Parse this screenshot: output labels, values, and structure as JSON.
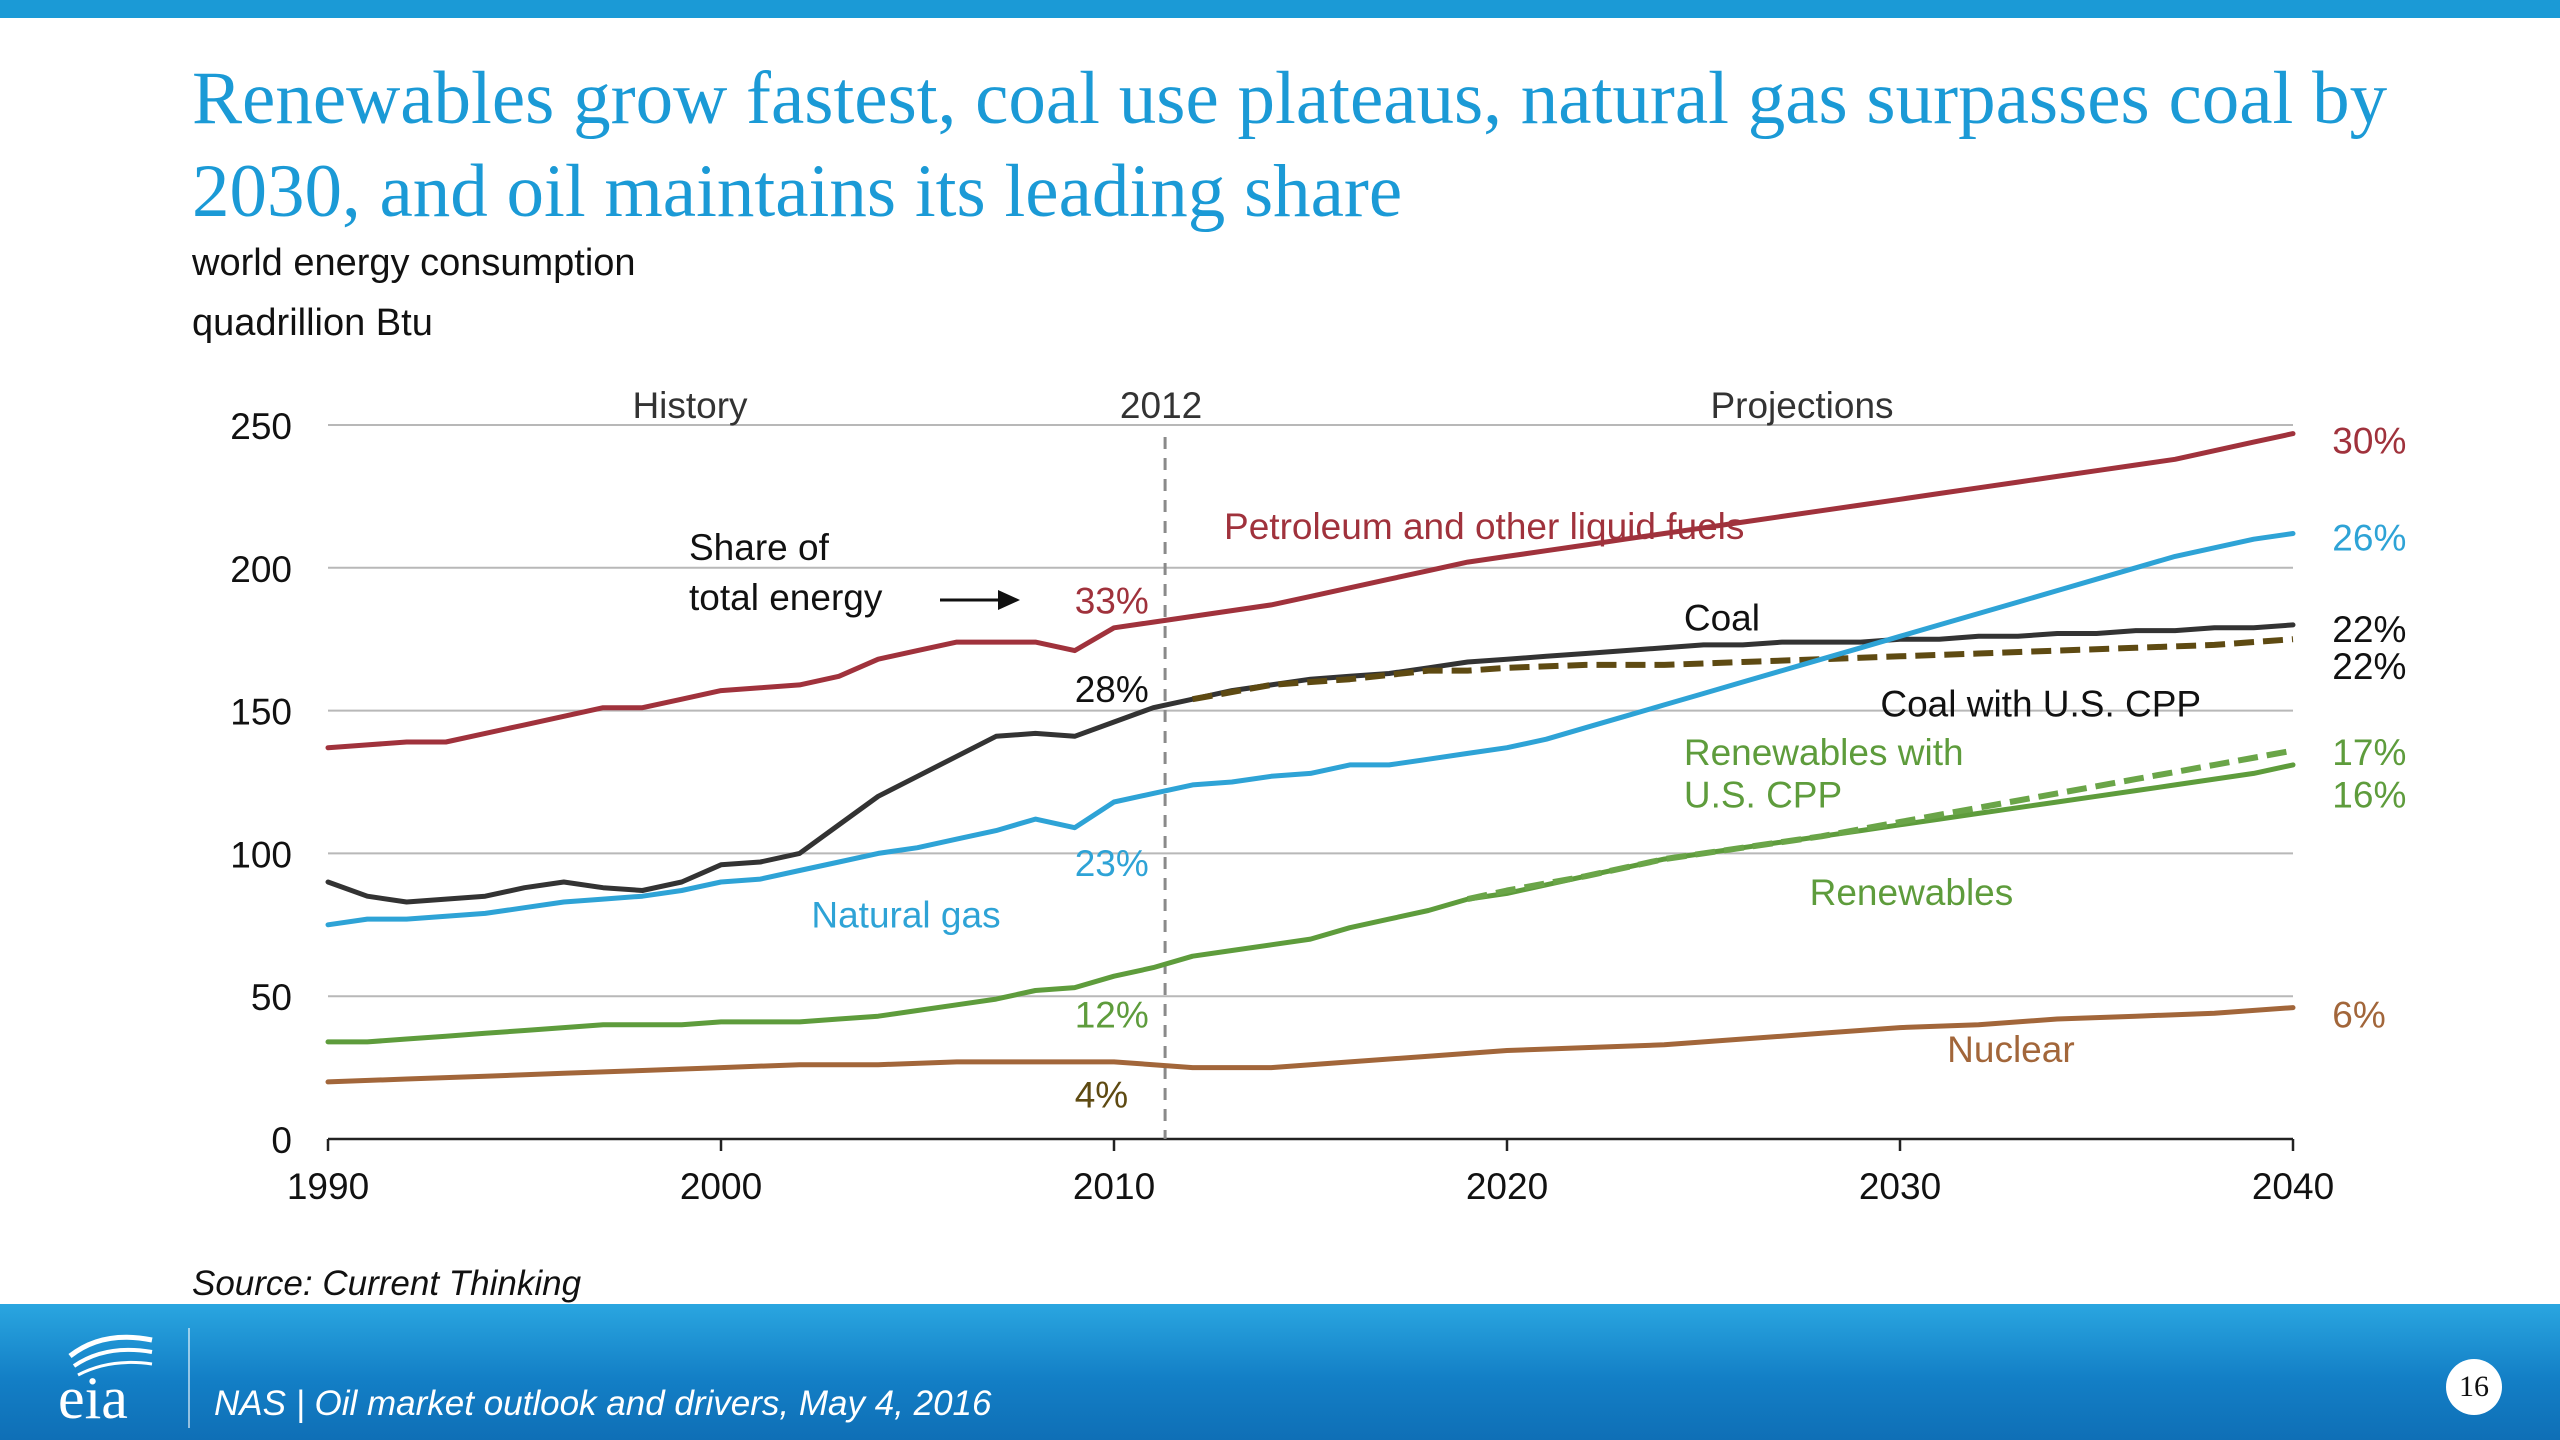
{
  "title": "Renewables grow fastest, coal use plateaus, natural gas surpasses coal by 2030, and oil maintains its leading share",
  "subtitle_1": "world energy consumption",
  "subtitle_2": "quadrillion Btu",
  "source": "Source: Current Thinking",
  "footer_text": "NAS | Oil market outlook and drivers, May 4, 2016",
  "page_number": "16",
  "logo_text": "eia",
  "colors": {
    "brand_blue": "#1b9ad6",
    "petroleum": "#a0323c",
    "coal": "#333333",
    "coal_cpp": "#5e4a12",
    "natural_gas": "#2ea3d6",
    "renewables": "#5e9c3c",
    "renewables_cpp": "#6aa548",
    "nuclear": "#a2663a"
  },
  "chart_data": {
    "type": "line",
    "x_ticks": [
      1990,
      2000,
      2010,
      2020,
      2030,
      2040
    ],
    "y_ticks": [
      0,
      50,
      100,
      150,
      200,
      250
    ],
    "xlim": [
      1990,
      2040
    ],
    "ylim": [
      0,
      250
    ],
    "grid": "horizontal",
    "divider_year": 2011.3,
    "divider_label": "2012",
    "region_labels": [
      "History",
      "Projections"
    ],
    "share_note": [
      "Share of",
      "total energy"
    ],
    "series": [
      {
        "name": "Petroleum and other liquid fuels",
        "color": "#a0323c",
        "dash": false,
        "x": [
          1990,
          1991,
          1992,
          1993,
          1994,
          1995,
          1996,
          1997,
          1998,
          1999,
          2000,
          2001,
          2002,
          2003,
          2004,
          2005,
          2006,
          2007,
          2008,
          2009,
          2010,
          2011,
          2012,
          2013,
          2014,
          2015,
          2016,
          2017,
          2018,
          2019,
          2020,
          2021,
          2022,
          2023,
          2024,
          2025,
          2026,
          2027,
          2028,
          2029,
          2030,
          2031,
          2032,
          2033,
          2034,
          2035,
          2036,
          2037,
          2038,
          2039,
          2040
        ],
        "y": [
          137,
          138,
          139,
          139,
          142,
          145,
          148,
          151,
          151,
          154,
          157,
          158,
          159,
          162,
          168,
          171,
          174,
          174,
          174,
          171,
          179,
          181,
          183,
          185,
          187,
          190,
          193,
          196,
          199,
          202,
          204,
          206,
          208,
          210,
          212,
          214,
          216,
          218,
          220,
          222,
          224,
          226,
          228,
          230,
          232,
          234,
          236,
          238,
          241,
          244,
          247
        ]
      },
      {
        "name": "Coal",
        "color": "#333333",
        "dash": false,
        "x": [
          1990,
          1991,
          1992,
          1993,
          1994,
          1995,
          1996,
          1997,
          1998,
          1999,
          2000,
          2001,
          2002,
          2003,
          2004,
          2005,
          2006,
          2007,
          2008,
          2009,
          2010,
          2011,
          2012,
          2013,
          2014,
          2015,
          2016,
          2017,
          2018,
          2019,
          2020,
          2021,
          2022,
          2023,
          2024,
          2025,
          2026,
          2027,
          2028,
          2029,
          2030,
          2031,
          2032,
          2033,
          2034,
          2035,
          2036,
          2037,
          2038,
          2039,
          2040
        ],
        "y": [
          90,
          85,
          83,
          84,
          85,
          88,
          90,
          88,
          87,
          90,
          96,
          97,
          100,
          110,
          120,
          127,
          134,
          141,
          142,
          141,
          146,
          151,
          154,
          157,
          159,
          161,
          162,
          163,
          165,
          167,
          168,
          169,
          170,
          171,
          172,
          173,
          173,
          174,
          174,
          174,
          175,
          175,
          176,
          176,
          177,
          177,
          178,
          178,
          179,
          179,
          180
        ]
      },
      {
        "name": "Coal with U.S. CPP",
        "color": "#5e4a12",
        "dash": true,
        "x": [
          2012,
          2014,
          2016,
          2018,
          2019,
          2020,
          2022,
          2024,
          2026,
          2028,
          2030,
          2032,
          2034,
          2036,
          2038,
          2040
        ],
        "y": [
          154,
          159,
          161,
          164,
          164,
          165,
          166,
          166,
          167,
          168,
          169,
          170,
          171,
          172,
          173,
          175
        ]
      },
      {
        "name": "Natural gas",
        "color": "#2ea3d6",
        "dash": false,
        "x": [
          1990,
          1991,
          1992,
          1993,
          1994,
          1995,
          1996,
          1997,
          1998,
          1999,
          2000,
          2001,
          2002,
          2003,
          2004,
          2005,
          2006,
          2007,
          2008,
          2009,
          2010,
          2011,
          2012,
          2013,
          2014,
          2015,
          2016,
          2017,
          2018,
          2019,
          2020,
          2021,
          2022,
          2023,
          2024,
          2025,
          2026,
          2027,
          2028,
          2029,
          2030,
          2031,
          2032,
          2033,
          2034,
          2035,
          2036,
          2037,
          2038,
          2039,
          2040
        ],
        "y": [
          75,
          77,
          77,
          78,
          79,
          81,
          83,
          84,
          85,
          87,
          90,
          91,
          94,
          97,
          100,
          102,
          105,
          108,
          112,
          109,
          118,
          121,
          124,
          125,
          127,
          128,
          131,
          131,
          133,
          135,
          137,
          140,
          144,
          148,
          152,
          156,
          160,
          164,
          168,
          172,
          176,
          180,
          184,
          188,
          192,
          196,
          200,
          204,
          207,
          210,
          212
        ]
      },
      {
        "name": "Renewables",
        "color": "#5e9c3c",
        "dash": false,
        "x": [
          1990,
          1991,
          1992,
          1993,
          1994,
          1995,
          1996,
          1997,
          1998,
          1999,
          2000,
          2001,
          2002,
          2003,
          2004,
          2005,
          2006,
          2007,
          2008,
          2009,
          2010,
          2011,
          2012,
          2013,
          2014,
          2015,
          2016,
          2017,
          2018,
          2019,
          2020,
          2021,
          2022,
          2023,
          2024,
          2025,
          2026,
          2027,
          2028,
          2029,
          2030,
          2031,
          2032,
          2033,
          2034,
          2035,
          2036,
          2037,
          2038,
          2039,
          2040
        ],
        "y": [
          34,
          34,
          35,
          36,
          37,
          38,
          39,
          40,
          40,
          40,
          41,
          41,
          41,
          42,
          43,
          45,
          47,
          49,
          52,
          53,
          57,
          60,
          64,
          66,
          68,
          70,
          74,
          77,
          80,
          84,
          86,
          89,
          92,
          95,
          98,
          100,
          102,
          104,
          106,
          108,
          110,
          112,
          114,
          116,
          118,
          120,
          122,
          124,
          126,
          128,
          131
        ]
      },
      {
        "name": "Renewables with U.S. CPP",
        "color": "#6aa548",
        "dash": true,
        "x": [
          2019,
          2020,
          2022,
          2024,
          2026,
          2028,
          2030,
          2032,
          2034,
          2036,
          2038,
          2040
        ],
        "y": [
          84,
          87,
          92,
          98,
          102,
          106,
          111,
          116,
          121,
          126,
          131,
          136
        ]
      },
      {
        "name": "Nuclear",
        "color": "#a2663a",
        "dash": false,
        "x": [
          1990,
          1992,
          1994,
          1996,
          1998,
          2000,
          2002,
          2004,
          2006,
          2008,
          2010,
          2011,
          2012,
          2014,
          2016,
          2018,
          2020,
          2022,
          2024,
          2026,
          2028,
          2030,
          2032,
          2034,
          2036,
          2038,
          2040
        ],
        "y": [
          20,
          21,
          22,
          23,
          24,
          25,
          26,
          26,
          27,
          27,
          27,
          26,
          25,
          25,
          27,
          29,
          31,
          32,
          33,
          35,
          37,
          39,
          40,
          42,
          43,
          44,
          46
        ]
      }
    ],
    "annotations": [
      {
        "text": "Petroleum and other liquid fuels",
        "x": 2012.8,
        "y": 210,
        "color": "#a0323c"
      },
      {
        "text": "Coal",
        "x": 2024.5,
        "y": 178,
        "color": "#111111"
      },
      {
        "text": "Coal with U.S. CPP",
        "x": 2029.5,
        "y": 148,
        "color": "#111111"
      },
      {
        "text": "Natural gas",
        "x": 2002.3,
        "y": 74,
        "color": "#2ea3d6"
      },
      {
        "text": "Renewables with",
        "x": 2024.5,
        "y": 131,
        "color": "#5e9c3c"
      },
      {
        "text": "U.S. CPP",
        "x": 2024.5,
        "y": 116,
        "color": "#5e9c3c"
      },
      {
        "text": "Renewables",
        "x": 2027.7,
        "y": 82,
        "color": "#5e9c3c"
      },
      {
        "text": "Nuclear",
        "x": 2031.2,
        "y": 27,
        "color": "#a2663a"
      }
    ],
    "share_labels": [
      {
        "text": "33%",
        "x": 2009,
        "y": 184,
        "color": "#a0323c"
      },
      {
        "text": "28%",
        "x": 2009,
        "y": 153,
        "color": "#111111"
      },
      {
        "text": "23%",
        "x": 2009,
        "y": 92,
        "color": "#2ea3d6"
      },
      {
        "text": "12%",
        "x": 2009,
        "y": 39,
        "color": "#5e9c3c"
      },
      {
        "text": "4%",
        "x": 2009,
        "y": 11,
        "color": "#5e4a12"
      },
      {
        "text": "30%",
        "x": 2041,
        "y": 240,
        "color": "#a0323c"
      },
      {
        "text": "26%",
        "x": 2041,
        "y": 206,
        "color": "#2ea3d6"
      },
      {
        "text": "22%",
        "x": 2041,
        "y": 174,
        "color": "#111111"
      },
      {
        "text": "22%",
        "x": 2041,
        "y": 161,
        "color": "#111111"
      },
      {
        "text": "17%",
        "x": 2041,
        "y": 131,
        "color": "#5e9c3c"
      },
      {
        "text": "16%",
        "x": 2041,
        "y": 116,
        "color": "#5e9c3c"
      },
      {
        "text": "6%",
        "x": 2041,
        "y": 39,
        "color": "#a2663a"
      }
    ]
  }
}
